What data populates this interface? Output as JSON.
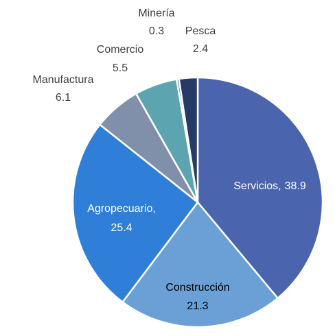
{
  "chart_data": {
    "type": "pie",
    "categories": [
      "Servicios,",
      "Construcción",
      "Agropecuario,",
      "Manufactura",
      "Comercio",
      "Minería",
      "Pesca"
    ],
    "values": [
      38.9,
      21.3,
      25.4,
      6.1,
      5.5,
      0.3,
      2.4
    ],
    "colors": [
      "#4a64ae",
      "#6aa0d6",
      "#2f7fd8",
      "#8090aa",
      "#5ba4b0",
      "#3a4e80",
      "#263a66"
    ],
    "label_colors": [
      "#ffffff",
      "#000000",
      "#ffffff",
      "#404040",
      "#404040",
      "#404040",
      "#404040"
    ]
  }
}
